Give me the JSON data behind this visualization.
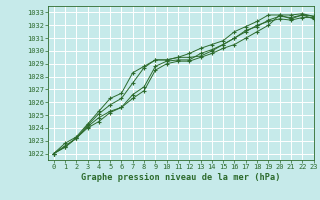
{
  "bg_color": "#c6eaea",
  "grid_color": "#b8d8d8",
  "line_color": "#2d6b2d",
  "title": "Graphe pression niveau de la mer (hPa)",
  "xlim": [
    -0.5,
    23
  ],
  "ylim": [
    1021.5,
    1033.5
  ],
  "yticks": [
    1022,
    1023,
    1024,
    1025,
    1026,
    1027,
    1028,
    1029,
    1030,
    1031,
    1032,
    1033
  ],
  "xticks": [
    0,
    1,
    2,
    3,
    4,
    5,
    6,
    7,
    8,
    9,
    10,
    11,
    12,
    13,
    14,
    15,
    16,
    17,
    18,
    19,
    20,
    21,
    22,
    23
  ],
  "series": [
    [
      1022.0,
      1022.5,
      1023.2,
      1024.1,
      1024.8,
      1025.3,
      1025.6,
      1026.6,
      1027.2,
      1028.8,
      1029.2,
      1029.3,
      1029.3,
      1029.8,
      1030.1,
      1030.5,
      1031.0,
      1031.5,
      1032.0,
      1032.3,
      1032.5,
      1032.4,
      1032.6,
      1032.6
    ],
    [
      1022.0,
      1022.5,
      1023.2,
      1024.2,
      1025.1,
      1025.8,
      1026.3,
      1027.5,
      1028.7,
      1029.3,
      1029.3,
      1029.5,
      1029.5,
      1029.6,
      1030.0,
      1030.5,
      1031.0,
      1031.6,
      1031.9,
      1032.4,
      1032.7,
      1032.6,
      1032.8,
      1032.7
    ],
    [
      1022.0,
      1022.8,
      1023.3,
      1024.3,
      1025.3,
      1026.3,
      1026.7,
      1028.3,
      1028.8,
      1029.3,
      1029.3,
      1029.5,
      1029.8,
      1030.2,
      1030.5,
      1030.8,
      1031.5,
      1031.9,
      1032.3,
      1032.8,
      1032.8,
      1032.8,
      1032.9,
      1032.7
    ],
    [
      1022.0,
      1022.6,
      1023.2,
      1024.0,
      1024.5,
      1025.2,
      1025.6,
      1026.3,
      1026.9,
      1028.5,
      1029.0,
      1029.2,
      1029.2,
      1029.5,
      1029.8,
      1030.2,
      1030.5,
      1031.0,
      1031.5,
      1032.0,
      1032.8,
      1032.5,
      1032.8,
      1032.5
    ]
  ]
}
